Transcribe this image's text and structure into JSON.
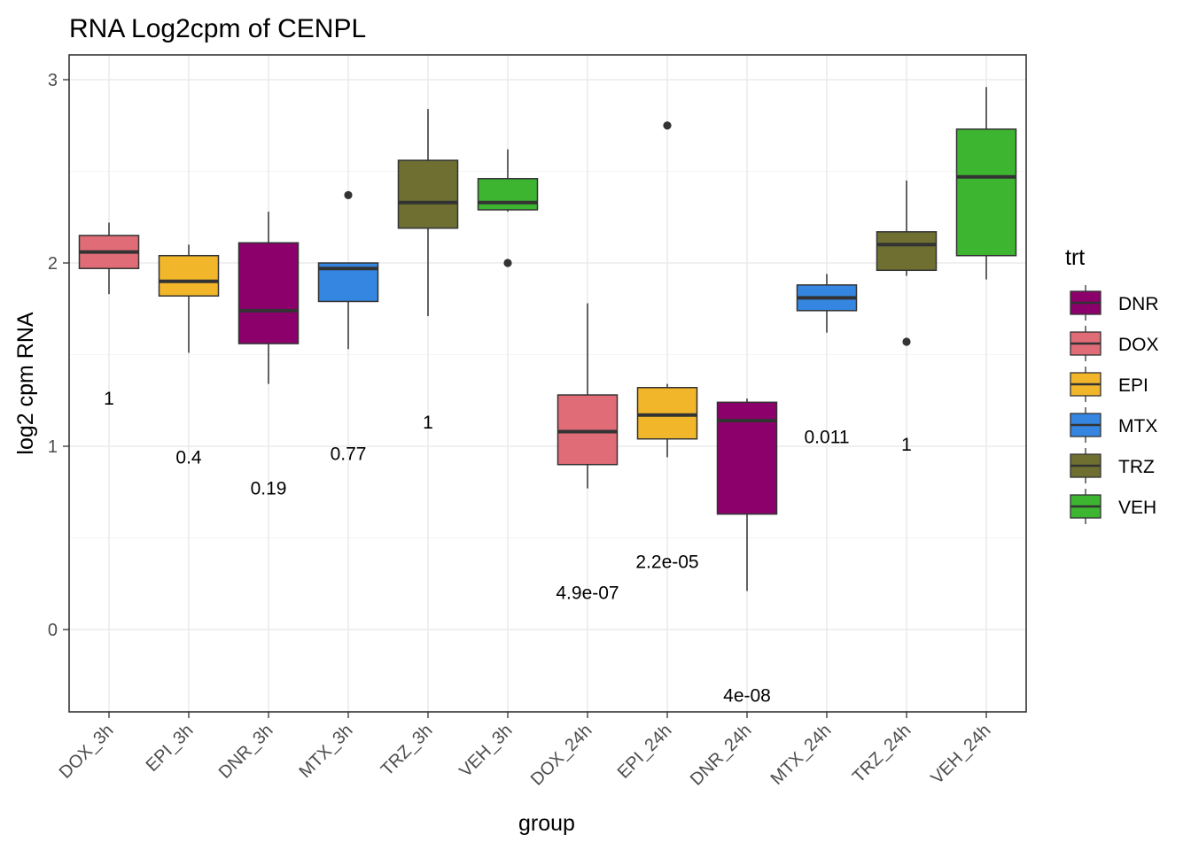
{
  "chart_data": {
    "type": "boxplot",
    "title": "RNA Log2cpm of CENPL",
    "xlabel": "group",
    "ylabel": "log2 cpm RNA",
    "ylim": [
      -0.45,
      3.1
    ],
    "yticks": [
      0,
      1,
      2,
      3
    ],
    "grid": true,
    "legend": {
      "title": "trt",
      "position": "right",
      "entries": [
        {
          "label": "DNR",
          "color": "#8B006B"
        },
        {
          "label": "DOX",
          "color": "#E06C78"
        },
        {
          "label": "EPI",
          "color": "#F2B62A"
        },
        {
          "label": "MTX",
          "color": "#3586E0"
        },
        {
          "label": "TRZ",
          "color": "#6E6F30"
        },
        {
          "label": "VEH",
          "color": "#3DB530"
        }
      ]
    },
    "groups": [
      {
        "name": "DOX_3h",
        "trt": "DOX",
        "lower_whisker": 1.83,
        "q1": 1.97,
        "median": 2.06,
        "q3": 2.15,
        "upper_whisker": 2.22,
        "outliers": [],
        "p_label": "1",
        "p_y": 1.26
      },
      {
        "name": "EPI_3h",
        "trt": "EPI",
        "lower_whisker": 1.51,
        "q1": 1.82,
        "median": 1.9,
        "q3": 2.04,
        "upper_whisker": 2.1,
        "outliers": [],
        "p_label": "0.4",
        "p_y": 0.94
      },
      {
        "name": "DNR_3h",
        "trt": "DNR",
        "lower_whisker": 1.34,
        "q1": 1.56,
        "median": 1.74,
        "q3": 2.11,
        "upper_whisker": 2.28,
        "outliers": [],
        "p_label": "0.19",
        "p_y": 0.77
      },
      {
        "name": "MTX_3h",
        "trt": "MTX",
        "lower_whisker": 1.53,
        "q1": 1.79,
        "median": 1.97,
        "q3": 2.0,
        "upper_whisker": 2.0,
        "outliers": [
          2.37
        ],
        "p_label": "0.77",
        "p_y": 0.96
      },
      {
        "name": "TRZ_3h",
        "trt": "TRZ",
        "lower_whisker": 1.71,
        "q1": 2.19,
        "median": 2.33,
        "q3": 2.56,
        "upper_whisker": 2.84,
        "outliers": [],
        "p_label": "1",
        "p_y": 1.13
      },
      {
        "name": "VEH_3h",
        "trt": "VEH",
        "lower_whisker": 2.28,
        "q1": 2.29,
        "median": 2.33,
        "q3": 2.46,
        "upper_whisker": 2.62,
        "outliers": [
          2.0
        ],
        "p_label": "",
        "p_y": 0
      },
      {
        "name": "DOX_24h",
        "trt": "DOX",
        "lower_whisker": 0.77,
        "q1": 0.9,
        "median": 1.08,
        "q3": 1.28,
        "upper_whisker": 1.78,
        "outliers": [],
        "p_label": "4.9e-07",
        "p_y": 0.2
      },
      {
        "name": "EPI_24h",
        "trt": "EPI",
        "lower_whisker": 0.94,
        "q1": 1.04,
        "median": 1.17,
        "q3": 1.32,
        "upper_whisker": 1.34,
        "outliers": [
          2.75
        ],
        "p_label": "2.2e-05",
        "p_y": 0.37
      },
      {
        "name": "DNR_24h",
        "trt": "DNR",
        "lower_whisker": 0.21,
        "q1": 0.63,
        "median": 1.14,
        "q3": 1.24,
        "upper_whisker": 1.26,
        "outliers": [],
        "p_label": "4e-08",
        "p_y": -0.36
      },
      {
        "name": "MTX_24h",
        "trt": "MTX",
        "lower_whisker": 1.62,
        "q1": 1.74,
        "median": 1.81,
        "q3": 1.88,
        "upper_whisker": 1.94,
        "outliers": [],
        "p_label": "0.011",
        "p_y": 1.05
      },
      {
        "name": "TRZ_24h",
        "trt": "TRZ",
        "lower_whisker": 1.93,
        "q1": 1.96,
        "median": 2.1,
        "q3": 2.17,
        "upper_whisker": 2.45,
        "outliers": [
          1.57
        ],
        "p_label": "1",
        "p_y": 1.01
      },
      {
        "name": "VEH_24h",
        "trt": "VEH",
        "lower_whisker": 1.91,
        "q1": 2.04,
        "median": 2.47,
        "q3": 2.73,
        "upper_whisker": 2.96,
        "outliers": [],
        "p_label": "",
        "p_y": 0
      }
    ]
  }
}
